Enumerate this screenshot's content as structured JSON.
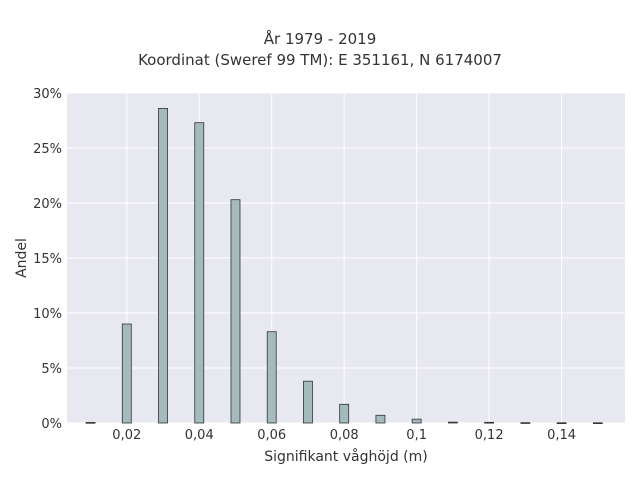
{
  "chart_data": {
    "type": "bar",
    "title": "År 1979 - 2019",
    "subtitle": "Koordinat (Sweref 99 TM): E 351161, N 6174007",
    "xlabel": "Signifikant våghöjd (m)",
    "ylabel": "Andel",
    "x": [
      0.01,
      0.02,
      0.03,
      0.04,
      0.05,
      0.06,
      0.07,
      0.08,
      0.09,
      0.1,
      0.11,
      0.12,
      0.13,
      0.14,
      0.15
    ],
    "values": [
      0.05,
      9.0,
      28.6,
      27.3,
      20.3,
      8.3,
      3.8,
      1.7,
      0.7,
      0.35,
      0.08,
      0.06,
      0.03,
      0.02,
      0.02
    ],
    "value_unit": "%",
    "xlim": [
      0.0035,
      0.1575
    ],
    "ylim": [
      0,
      30
    ],
    "x_ticks": [
      {
        "value": 0.02,
        "label": "0,02"
      },
      {
        "value": 0.04,
        "label": "0,04"
      },
      {
        "value": 0.06,
        "label": "0,06"
      },
      {
        "value": 0.08,
        "label": "0,08"
      },
      {
        "value": 0.1,
        "label": "0,1"
      },
      {
        "value": 0.12,
        "label": "0,12"
      },
      {
        "value": 0.14,
        "label": "0,14"
      }
    ],
    "y_ticks": [
      {
        "value": 0,
        "label": "0%"
      },
      {
        "value": 5,
        "label": "5%"
      },
      {
        "value": 10,
        "label": "10%"
      },
      {
        "value": 15,
        "label": "15%"
      },
      {
        "value": 20,
        "label": "20%"
      },
      {
        "value": 25,
        "label": "25%"
      },
      {
        "value": 30,
        "label": "30%"
      }
    ],
    "grid": true,
    "colors": {
      "plot_background": "#e8e8f0",
      "grid": "#ffffff",
      "bar_fill": "#a3bbbd",
      "bar_stroke": "#333333"
    }
  }
}
